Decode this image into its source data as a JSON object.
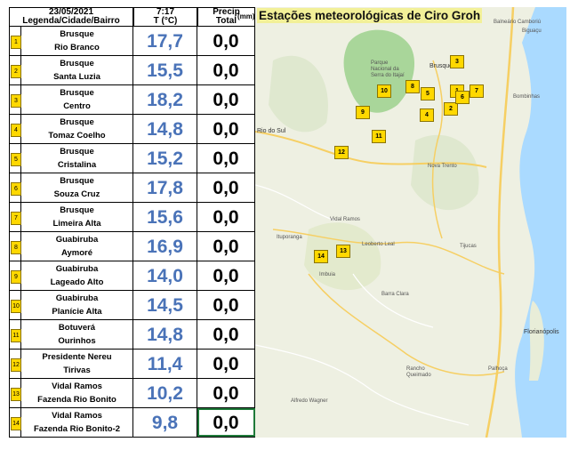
{
  "header": {
    "date": "23/05/2021",
    "location_label": "Legenda/Cidade/Bairro",
    "time": "7:17",
    "temp_label": "T (°C)",
    "precip_label_1": "Precip",
    "precip_label_2": "Total",
    "unit_badge": "(mm)"
  },
  "map": {
    "title": "Estações meteorológicas de Ciro Groh",
    "labels": {
      "parque": "Parque Nacional da Serra do Itajaí",
      "brusque": "Brusque",
      "biguacu": "Biguaçu",
      "camboriu": "Balneário Camboriú",
      "bombinhas": "Bombinhas",
      "rio_do_sul": "Rio do Sul",
      "nova_trento": "Nova Trento",
      "vidal_ramos": "Vidal Ramos",
      "ituporanga": "Ituporanga",
      "imbuia": "Imbuia",
      "leoberto": "Leoberto Leal",
      "barra_clara": "Barra Clara",
      "tijucas": "Tijucas",
      "florianopolis": "Florianópolis",
      "rancho": "Rancho Queimado",
      "alfredo": "Alfredo Wagner",
      "palhoca": "Palhoça"
    },
    "markers": [
      "1",
      "2",
      "3",
      "4",
      "5",
      "6",
      "7",
      "8",
      "9",
      "10",
      "11",
      "12",
      "13",
      "14"
    ]
  },
  "stations": [
    {
      "n": "1",
      "city": "Brusque",
      "bairro": "Rio Branco",
      "temp": "17,7",
      "precip": "0,0"
    },
    {
      "n": "2",
      "city": "Brusque",
      "bairro": "Santa Luzia",
      "temp": "15,5",
      "precip": "0,0"
    },
    {
      "n": "3",
      "city": "Brusque",
      "bairro": "Centro",
      "temp": "18,2",
      "precip": "0,0"
    },
    {
      "n": "4",
      "city": "Brusque",
      "bairro": "Tomaz Coelho",
      "temp": "14,8",
      "precip": "0,0"
    },
    {
      "n": "5",
      "city": "Brusque",
      "bairro": "Cristalina",
      "temp": "15,2",
      "precip": "0,0"
    },
    {
      "n": "6",
      "city": "Brusque",
      "bairro": "Souza Cruz",
      "temp": "17,8",
      "precip": "0,0"
    },
    {
      "n": "7",
      "city": "Brusque",
      "bairro": "Limeira Alta",
      "temp": "15,6",
      "precip": "0,0"
    },
    {
      "n": "8",
      "city": "Guabiruba",
      "bairro": "Aymoré",
      "temp": "16,9",
      "precip": "0,0"
    },
    {
      "n": "9",
      "city": "Guabiruba",
      "bairro": "Lageado Alto",
      "temp": "14,0",
      "precip": "0,0"
    },
    {
      "n": "10",
      "city": "Guabiruba",
      "bairro": "Planície Alta",
      "temp": "14,5",
      "precip": "0,0"
    },
    {
      "n": "11",
      "city": "Botuverá",
      "bairro": "Ourinhos",
      "temp": "14,8",
      "precip": "0,0"
    },
    {
      "n": "12",
      "city": "Presidente Nereu",
      "bairro": "Tirivas",
      "temp": "11,4",
      "precip": "0,0"
    },
    {
      "n": "13",
      "city": "Vidal Ramos",
      "bairro": "Fazenda Rio Bonito",
      "temp": "10,2",
      "precip": "0,0"
    },
    {
      "n": "14",
      "city": "Vidal Ramos",
      "bairro": "Fazenda Rio Bonito-2",
      "temp": "9,8",
      "precip": "0,0"
    }
  ]
}
